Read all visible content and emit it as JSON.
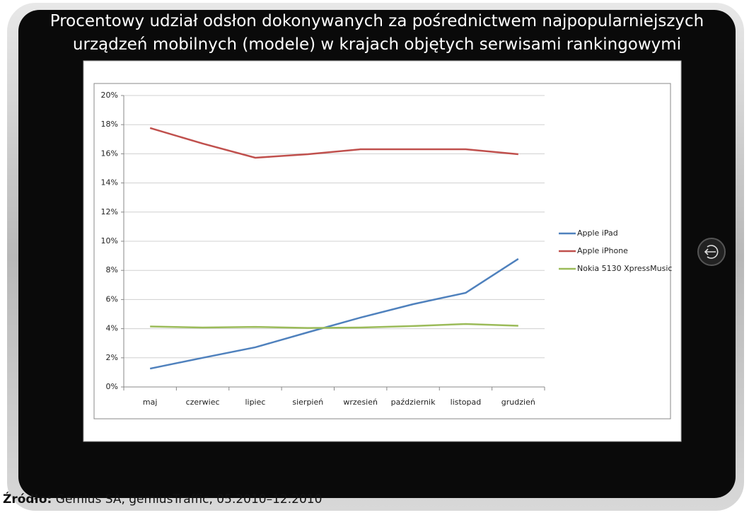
{
  "chart_data": {
    "type": "line",
    "title": "Procentowy udział odsłon dokonywanych za pośrednictwem najpopularniejszych urządzeń mobilnych (modele) w krajach objętych serwisami rankingowymi",
    "categories": [
      "maj",
      "czerwiec",
      "lipiec",
      "sierpień",
      "wrzesień",
      "październik",
      "listopad",
      "grudzień"
    ],
    "series": [
      {
        "name": "Apple iPad",
        "color": "#4f81bd",
        "values": [
          1.26,
          2.0,
          2.72,
          3.75,
          4.76,
          5.68,
          6.46,
          8.79
        ]
      },
      {
        "name": "Apple iPhone",
        "color": "#c0504d",
        "values": [
          17.77,
          16.7,
          15.73,
          15.97,
          16.31,
          16.31,
          16.31,
          15.97
        ]
      },
      {
        "name": "Nokia 5130 XpressMusic",
        "color": "#9bbb59",
        "values": [
          4.15,
          4.08,
          4.12,
          4.05,
          4.08,
          4.18,
          4.32,
          4.2
        ]
      }
    ],
    "ylim": [
      0,
      20
    ],
    "yticks": [
      {
        "value": 0,
        "label": "0%"
      },
      {
        "value": 2,
        "label": "2%"
      },
      {
        "value": 4,
        "label": "4%"
      },
      {
        "value": 6,
        "label": "6%"
      },
      {
        "value": 8,
        "label": "8%"
      },
      {
        "value": 10,
        "label": "10%"
      },
      {
        "value": 12,
        "label": "12%"
      },
      {
        "value": 14,
        "label": "14%"
      },
      {
        "value": 16,
        "label": "16%"
      },
      {
        "value": 18,
        "label": "18%"
      },
      {
        "value": 20,
        "label": "20%"
      }
    ],
    "grid": true,
    "legend": "right"
  },
  "source_label": "Źródło:",
  "source": "Gemius SA, gemiusTraffic, 05.2010–12.2010"
}
